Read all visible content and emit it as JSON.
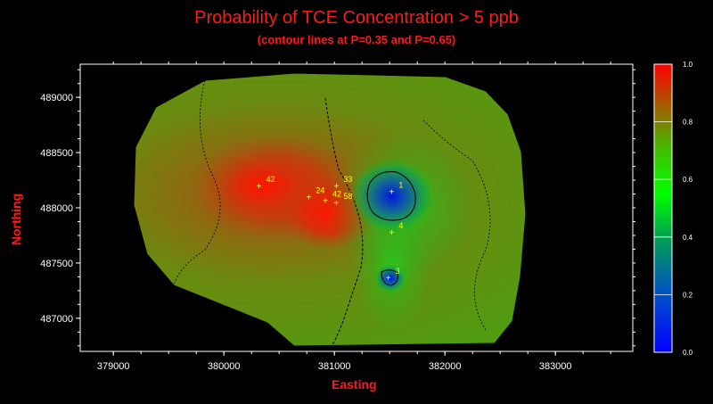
{
  "title": "Probability of TCE Concentration > 5 ppb",
  "subtitle": "(contour lines at P=0.35 and P=0.65)",
  "chart_data": {
    "type": "heatmap",
    "xlabel": "Easting",
    "ylabel": "Northing",
    "x_ticks": [
      "379000",
      "380000",
      "381000",
      "382000",
      "383000"
    ],
    "y_ticks": [
      "489000",
      "488500",
      "488000",
      "487500",
      "487000"
    ],
    "xlim": [
      378700,
      383700
    ],
    "ylim": [
      486700,
      489300
    ],
    "colorbar": {
      "range": [
        0.0,
        1.0
      ],
      "ticks": [
        "1.0",
        "0.8",
        "0.6",
        "0.4",
        "0.2",
        "0.0"
      ],
      "colors": [
        "#0000ff",
        "#00ff00",
        "#ff0000"
      ]
    },
    "contour_levels": [
      0.35,
      0.65
    ],
    "wells": [
      {
        "label": "42",
        "x": 380350,
        "y": 488200
      },
      {
        "label": "33",
        "x": 381050,
        "y": 488200
      },
      {
        "label": "24",
        "x": 380800,
        "y": 488100
      },
      {
        "label": "42",
        "x": 380950,
        "y": 488070
      },
      {
        "label": "58",
        "x": 381050,
        "y": 488050
      },
      {
        "label": "1",
        "x": 381550,
        "y": 488150
      },
      {
        "label": "4",
        "x": 381550,
        "y": 487780
      },
      {
        "label": "3",
        "x": 381520,
        "y": 487370
      }
    ]
  },
  "colors": {
    "title": "#ff1a1a",
    "background": "#000000",
    "high": "#ff0000",
    "mid": "#00c800",
    "low": "#0000ff",
    "well_label": "#ffff00"
  }
}
